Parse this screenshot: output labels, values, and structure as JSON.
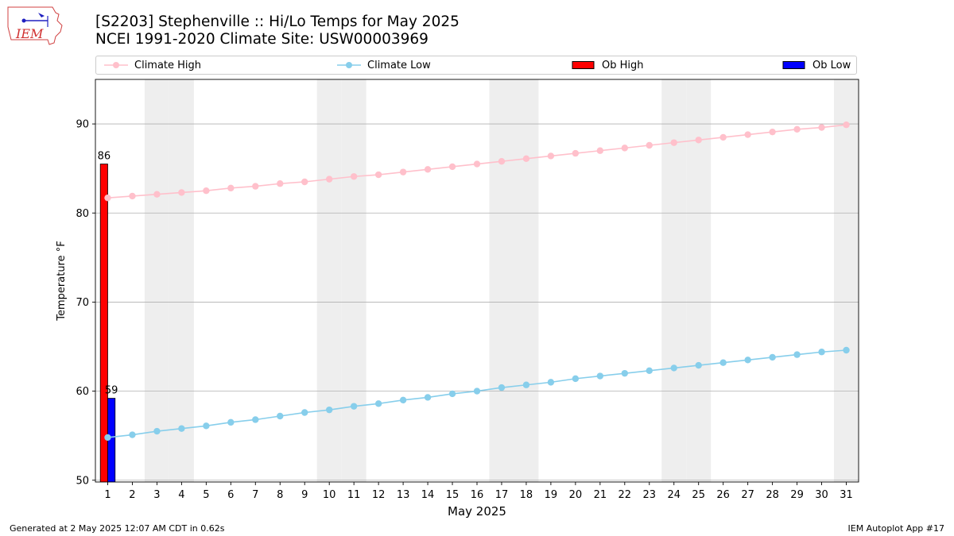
{
  "header": {
    "logo_text": "IEM",
    "title_line1": "[S2203] Stephenville :: Hi/Lo Temps for May 2025",
    "title_line2": "NCEI 1991-2020 Climate Site: USW00003969"
  },
  "legend": [
    {
      "label": "Climate High",
      "marker": "line-dot",
      "color": "#ffc0cb"
    },
    {
      "label": "Climate Low",
      "marker": "line-dot",
      "color": "#87ceeb"
    },
    {
      "label": "Ob High",
      "marker": "box",
      "color": "#ff0000"
    },
    {
      "label": "Ob Low",
      "marker": "box",
      "color": "#0000ff"
    }
  ],
  "footer": {
    "left": "Generated at 2 May 2025 12:07 AM CDT in 0.62s",
    "right": "IEM Autoplot App #17"
  },
  "chart_data": {
    "type": "bar",
    "xlabel": "May 2025",
    "ylabel": "Temperature °F",
    "xlim": [
      0.5,
      31.5
    ],
    "ylim": [
      49.8,
      95
    ],
    "yticks": [
      50,
      60,
      70,
      80,
      90
    ],
    "grid": "y",
    "legend_position": "top",
    "shaded_weekend_days": [
      3,
      4,
      10,
      11,
      17,
      18,
      24,
      25,
      31
    ],
    "x": [
      1,
      2,
      3,
      4,
      5,
      6,
      7,
      8,
      9,
      10,
      11,
      12,
      13,
      14,
      15,
      16,
      17,
      18,
      19,
      20,
      21,
      22,
      23,
      24,
      25,
      26,
      27,
      28,
      29,
      30,
      31
    ],
    "series": [
      {
        "name": "Climate High",
        "type": "line",
        "color": "#ffc0cb",
        "values": [
          81.7,
          81.9,
          82.1,
          82.3,
          82.5,
          82.8,
          83.0,
          83.3,
          83.5,
          83.8,
          84.1,
          84.3,
          84.6,
          84.9,
          85.2,
          85.5,
          85.8,
          86.1,
          86.4,
          86.7,
          87.0,
          87.3,
          87.6,
          87.9,
          88.2,
          88.5,
          88.8,
          89.1,
          89.4,
          89.6,
          89.9
        ]
      },
      {
        "name": "Climate Low",
        "type": "line",
        "color": "#87ceeb",
        "values": [
          54.8,
          55.1,
          55.5,
          55.8,
          56.1,
          56.5,
          56.8,
          57.2,
          57.6,
          57.9,
          58.3,
          58.6,
          59.0,
          59.3,
          59.7,
          60.0,
          60.4,
          60.7,
          61.0,
          61.4,
          61.7,
          62.0,
          62.3,
          62.6,
          62.9,
          63.2,
          63.5,
          63.8,
          64.1,
          64.4,
          64.6
        ]
      },
      {
        "name": "Ob High",
        "type": "bar",
        "color": "#ff0000",
        "x": [
          1
        ],
        "values": [
          85.5
        ],
        "labels": [
          "86"
        ]
      },
      {
        "name": "Ob Low",
        "type": "bar",
        "color": "#0000ff",
        "x": [
          1
        ],
        "values": [
          59.2
        ],
        "labels": [
          "59"
        ]
      }
    ]
  }
}
